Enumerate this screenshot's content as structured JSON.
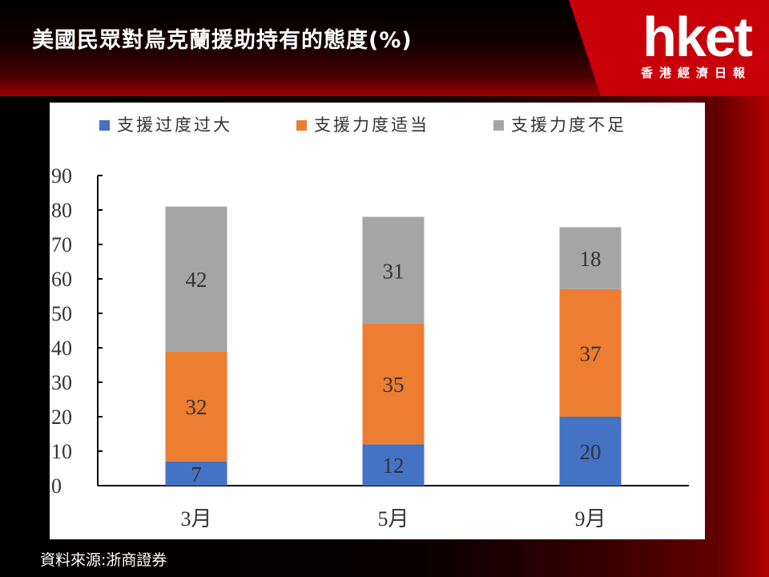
{
  "header": {
    "title": "美國民眾對烏克蘭援助持有的態度(%)"
  },
  "logo": {
    "name": "hket",
    "subtitle": "香港經濟日報"
  },
  "source": "資料來源:浙商證券",
  "chart_data": {
    "type": "bar",
    "stacked": true,
    "categories": [
      "3月",
      "5月",
      "9月"
    ],
    "series": [
      {
        "name": "支援过度过大",
        "color": "#4472C4",
        "values": [
          7,
          12,
          20
        ]
      },
      {
        "name": "支援力度适当",
        "color": "#ED7D31",
        "values": [
          32,
          35,
          37
        ]
      },
      {
        "name": "支援力度不足",
        "color": "#A5A5A5",
        "values": [
          42,
          31,
          18
        ]
      }
    ],
    "ylim": [
      0,
      90
    ],
    "yticks": [
      0,
      10,
      20,
      30,
      40,
      50,
      60,
      70,
      80,
      90
    ],
    "legend_position": "top-left",
    "grid": false
  }
}
